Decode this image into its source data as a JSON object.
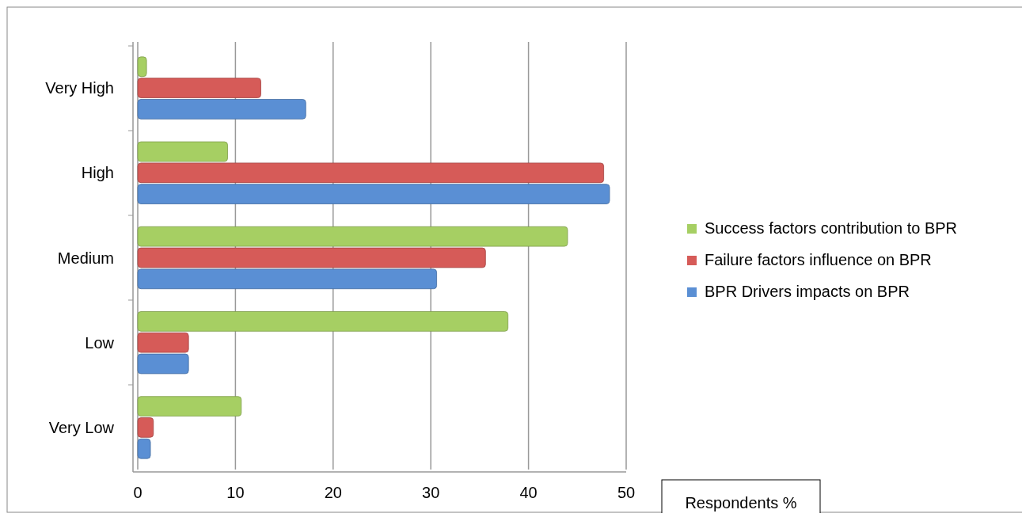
{
  "chart_data": {
    "type": "bar",
    "orientation": "horizontal",
    "categories": [
      "Very High",
      "High",
      "Medium",
      "Low",
      "Very Low"
    ],
    "series": [
      {
        "name": "BPR Drivers impacts on BPR",
        "color": "#5a8fd4",
        "values": [
          17.2,
          48.3,
          30.6,
          5.2,
          1.3
        ]
      },
      {
        "name": "Failure factors influence on BPR",
        "color": "#d65b58",
        "values": [
          12.6,
          47.7,
          35.6,
          5.2,
          1.6
        ]
      },
      {
        "name": "Success factors contribution to BPR",
        "color": "#a6cf63",
        "values": [
          0.9,
          9.2,
          44,
          37.9,
          10.6
        ]
      }
    ],
    "xlim": [
      0,
      50
    ],
    "xticks": [
      0,
      10,
      20,
      30,
      40,
      50
    ],
    "xlabel": "Respondents %",
    "grid": "x",
    "legend": "right"
  }
}
